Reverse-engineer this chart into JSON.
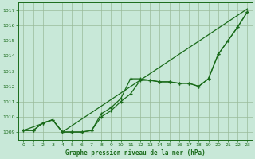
{
  "title": "Graphe pression niveau de la mer (hPa)",
  "xlim": [
    -0.5,
    23.5
  ],
  "ylim": [
    1008.5,
    1017.5
  ],
  "yticks": [
    1009,
    1010,
    1011,
    1012,
    1013,
    1014,
    1015,
    1016,
    1017
  ],
  "xticks": [
    0,
    1,
    2,
    3,
    4,
    5,
    6,
    7,
    8,
    9,
    10,
    11,
    12,
    13,
    14,
    15,
    16,
    17,
    18,
    19,
    20,
    21,
    22,
    23
  ],
  "background_color": "#c8e8d8",
  "grid_color": "#99bb99",
  "line_color": "#1a6b1a",
  "line1_x": [
    0,
    1,
    2,
    3,
    4,
    5,
    6,
    7,
    8,
    9,
    10,
    11,
    12,
    13,
    14,
    15,
    16,
    17,
    18,
    19,
    20,
    21,
    22,
    23
  ],
  "line1_y": [
    1009.1,
    1009.1,
    1009.6,
    1009.8,
    1009.0,
    1009.0,
    1009.0,
    1009.1,
    1010.0,
    1010.4,
    1011.0,
    1011.5,
    1012.4,
    1012.4,
    1012.3,
    1012.3,
    1012.2,
    1012.2,
    1012.0,
    1012.5,
    1014.1,
    1015.0,
    1015.9,
    1016.9
  ],
  "line2_x": [
    0,
    1,
    2,
    3,
    4,
    5,
    6,
    7,
    8,
    9,
    10,
    11,
    12,
    13,
    14,
    15,
    16,
    17,
    18,
    19,
    20,
    21,
    22,
    23
  ],
  "line2_y": [
    1009.1,
    1009.1,
    1009.6,
    1009.8,
    1009.0,
    1009.0,
    1009.0,
    1009.1,
    1010.2,
    1010.6,
    1011.2,
    1012.5,
    1012.5,
    1012.4,
    1012.3,
    1012.3,
    1012.2,
    1012.2,
    1012.0,
    1012.5,
    1014.1,
    1015.0,
    1015.9,
    1016.9
  ],
  "line3_x": [
    0,
    3,
    4,
    23
  ],
  "line3_y": [
    1009.1,
    1009.8,
    1009.0,
    1017.1
  ],
  "figsize": [
    3.2,
    2.0
  ],
  "dpi": 100
}
